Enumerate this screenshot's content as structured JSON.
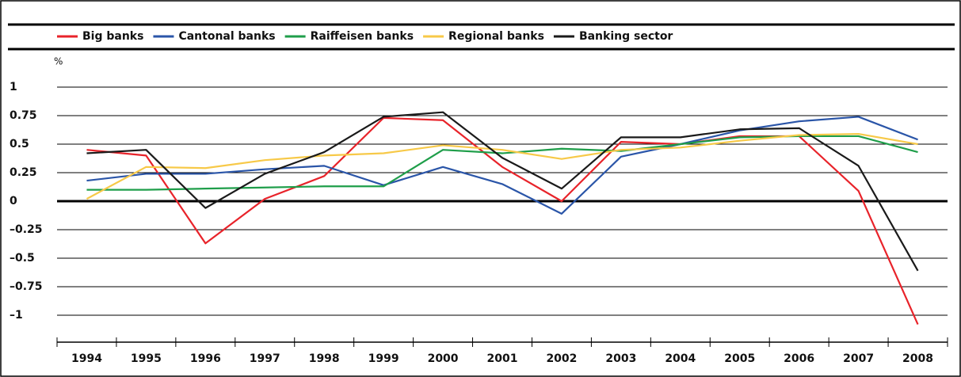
{
  "chart_data": {
    "type": "line",
    "y_label": "%",
    "categories": [
      "1994",
      "1995",
      "1996",
      "1997",
      "1998",
      "1999",
      "2000",
      "2001",
      "2002",
      "2003",
      "2004",
      "2005",
      "2006",
      "2007",
      "2008"
    ],
    "series": [
      {
        "name": "Big banks",
        "color": "#e8232a",
        "values": [
          0.45,
          0.4,
          -0.37,
          0.02,
          0.22,
          0.73,
          0.71,
          0.3,
          0.0,
          0.52,
          0.5,
          0.57,
          0.57,
          0.09,
          -1.08
        ]
      },
      {
        "name": "Cantonal banks",
        "color": "#2a55a8",
        "values": [
          0.18,
          0.24,
          0.24,
          0.28,
          0.31,
          0.14,
          0.3,
          0.15,
          -0.11,
          0.39,
          0.5,
          0.62,
          0.7,
          0.74,
          0.54
        ]
      },
      {
        "name": "Raiffeisen banks",
        "color": "#1f9e4a",
        "values": [
          0.1,
          0.1,
          0.11,
          0.12,
          0.13,
          0.13,
          0.45,
          0.42,
          0.46,
          0.44,
          0.5,
          0.56,
          0.57,
          0.57,
          0.43
        ]
      },
      {
        "name": "Regional banks",
        "color": "#f7c948",
        "values": [
          0.02,
          0.3,
          0.29,
          0.36,
          0.4,
          0.42,
          0.49,
          0.45,
          0.37,
          0.45,
          0.47,
          0.53,
          0.58,
          0.59,
          0.5
        ]
      },
      {
        "name": "Banking sector",
        "color": "#1a1a1a",
        "values": [
          0.42,
          0.45,
          -0.06,
          0.24,
          0.43,
          0.74,
          0.78,
          0.38,
          0.11,
          0.56,
          0.56,
          0.63,
          0.64,
          0.31,
          -0.61
        ]
      }
    ],
    "ylim": [
      -1.22,
      1.3
    ],
    "yticks": [
      1,
      0.75,
      0.5,
      0.25,
      0,
      {
        "value": -0.25,
        "label": "–0.25"
      },
      {
        "value": -0.5,
        "label": "–0.5"
      },
      {
        "value": -0.75,
        "label": "–0.75"
      },
      {
        "value": -1,
        "label": "–1"
      }
    ],
    "grid": true
  }
}
